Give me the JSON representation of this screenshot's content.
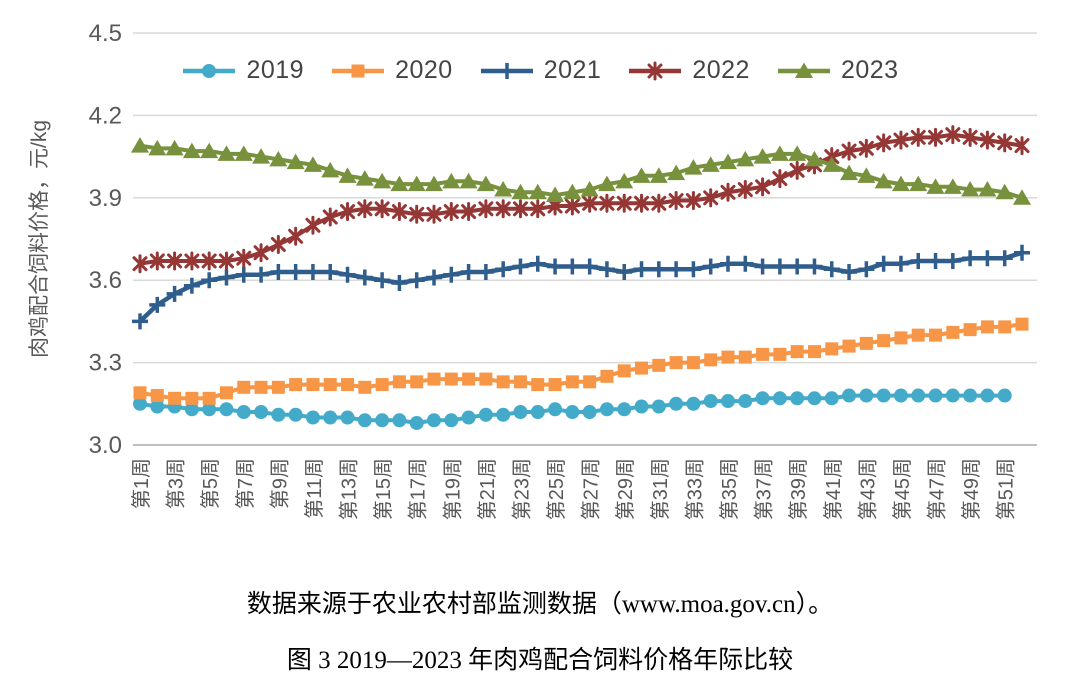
{
  "figure": {
    "source_note": "数据来源于农业农村部监测数据（www.moa.gov.cn）。",
    "caption": "图 3 2019—2023 年肉鸡配合饲料价格年际比较"
  },
  "style": {
    "background": "#FFFFFF",
    "grid_color": "#D9D9D9",
    "axis_line_color": "#BFBFBF",
    "tick_text_color": "#595959",
    "legend_text_color": "#444444",
    "caption_color": "#000000"
  },
  "chart_data": {
    "type": "line",
    "title": "图 3 2019—2023 年肉鸡配合饲料价格年际比较",
    "xlabel": "",
    "ylabel": "肉鸡配合饲料价格，元/kg",
    "ylim": [
      3.0,
      4.5
    ],
    "ytick_interval": 0.3,
    "ytick_labels": [
      "4.5",
      "4.2",
      "3.9",
      "3.6",
      "3.3",
      "3.0"
    ],
    "x_unit": "week",
    "x_start_week": 1,
    "xtick_weeks": [
      1,
      3,
      5,
      7,
      9,
      11,
      13,
      15,
      17,
      19,
      21,
      23,
      25,
      27,
      29,
      31,
      33,
      35,
      37,
      39,
      41,
      43,
      45,
      47,
      49,
      51
    ],
    "xtick_labels": [
      "第1周",
      "第3周",
      "第5周",
      "第7周",
      "第9周",
      "第11周",
      "第13周",
      "第15周",
      "第17周",
      "第19周",
      "第21周",
      "第23周",
      "第25周",
      "第27周",
      "第29周",
      "第31周",
      "第33周",
      "第35周",
      "第37周",
      "第39周",
      "第41周",
      "第43周",
      "第45周",
      "第47周",
      "第49周",
      "第51周"
    ],
    "grid": "horizontal",
    "legend_position": "top-center",
    "series": [
      {
        "name": "2019",
        "color": "#43AAC9",
        "marker": "circle",
        "values": [
          3.15,
          3.14,
          3.14,
          3.13,
          3.13,
          3.13,
          3.12,
          3.12,
          3.11,
          3.11,
          3.1,
          3.1,
          3.1,
          3.09,
          3.09,
          3.09,
          3.08,
          3.09,
          3.09,
          3.1,
          3.11,
          3.11,
          3.12,
          3.12,
          3.13,
          3.12,
          3.12,
          3.13,
          3.13,
          3.14,
          3.14,
          3.15,
          3.15,
          3.16,
          3.16,
          3.16,
          3.17,
          3.17,
          3.17,
          3.17,
          3.17,
          3.18,
          3.18,
          3.18,
          3.18,
          3.18,
          3.18,
          3.18,
          3.18,
          3.18,
          3.18
        ]
      },
      {
        "name": "2020",
        "color": "#F79646",
        "marker": "square",
        "values": [
          3.19,
          3.18,
          3.17,
          3.17,
          3.17,
          3.19,
          3.21,
          3.21,
          3.21,
          3.22,
          3.22,
          3.22,
          3.22,
          3.21,
          3.22,
          3.23,
          3.23,
          3.24,
          3.24,
          3.24,
          3.24,
          3.23,
          3.23,
          3.22,
          3.22,
          3.23,
          3.23,
          3.25,
          3.27,
          3.28,
          3.29,
          3.3,
          3.3,
          3.31,
          3.32,
          3.32,
          3.33,
          3.33,
          3.34,
          3.34,
          3.35,
          3.36,
          3.37,
          3.38,
          3.39,
          3.4,
          3.4,
          3.41,
          3.42,
          3.43,
          3.43,
          3.44
        ]
      },
      {
        "name": "2021",
        "color": "#2F5D8C",
        "marker": "plus",
        "values": [
          3.45,
          3.51,
          3.55,
          3.58,
          3.6,
          3.61,
          3.62,
          3.62,
          3.63,
          3.63,
          3.63,
          3.63,
          3.62,
          3.61,
          3.6,
          3.59,
          3.6,
          3.61,
          3.62,
          3.63,
          3.63,
          3.64,
          3.65,
          3.66,
          3.65,
          3.65,
          3.65,
          3.64,
          3.63,
          3.64,
          3.64,
          3.64,
          3.64,
          3.65,
          3.66,
          3.66,
          3.65,
          3.65,
          3.65,
          3.65,
          3.64,
          3.63,
          3.64,
          3.66,
          3.66,
          3.67,
          3.67,
          3.67,
          3.68,
          3.68,
          3.68,
          3.7
        ]
      },
      {
        "name": "2022",
        "color": "#943735",
        "marker": "asterisk",
        "values": [
          3.66,
          3.67,
          3.67,
          3.67,
          3.67,
          3.67,
          3.68,
          3.7,
          3.73,
          3.76,
          3.8,
          3.83,
          3.85,
          3.86,
          3.86,
          3.85,
          3.84,
          3.84,
          3.85,
          3.85,
          3.86,
          3.86,
          3.86,
          3.86,
          3.87,
          3.87,
          3.88,
          3.88,
          3.88,
          3.88,
          3.88,
          3.89,
          3.89,
          3.9,
          3.92,
          3.93,
          3.94,
          3.97,
          4.0,
          4.02,
          4.05,
          4.07,
          4.08,
          4.1,
          4.11,
          4.12,
          4.12,
          4.13,
          4.12,
          4.11,
          4.1,
          4.09
        ]
      },
      {
        "name": "2023",
        "color": "#77913C",
        "marker": "triangle",
        "values": [
          4.09,
          4.08,
          4.08,
          4.07,
          4.07,
          4.06,
          4.06,
          4.05,
          4.04,
          4.03,
          4.02,
          4.0,
          3.98,
          3.97,
          3.96,
          3.95,
          3.95,
          3.95,
          3.96,
          3.96,
          3.95,
          3.93,
          3.92,
          3.92,
          3.91,
          3.92,
          3.93,
          3.95,
          3.96,
          3.98,
          3.98,
          3.99,
          4.01,
          4.02,
          4.03,
          4.04,
          4.05,
          4.06,
          4.06,
          4.04,
          4.02,
          3.99,
          3.98,
          3.96,
          3.95,
          3.95,
          3.94,
          3.94,
          3.93,
          3.93,
          3.92,
          3.9
        ]
      }
    ]
  }
}
